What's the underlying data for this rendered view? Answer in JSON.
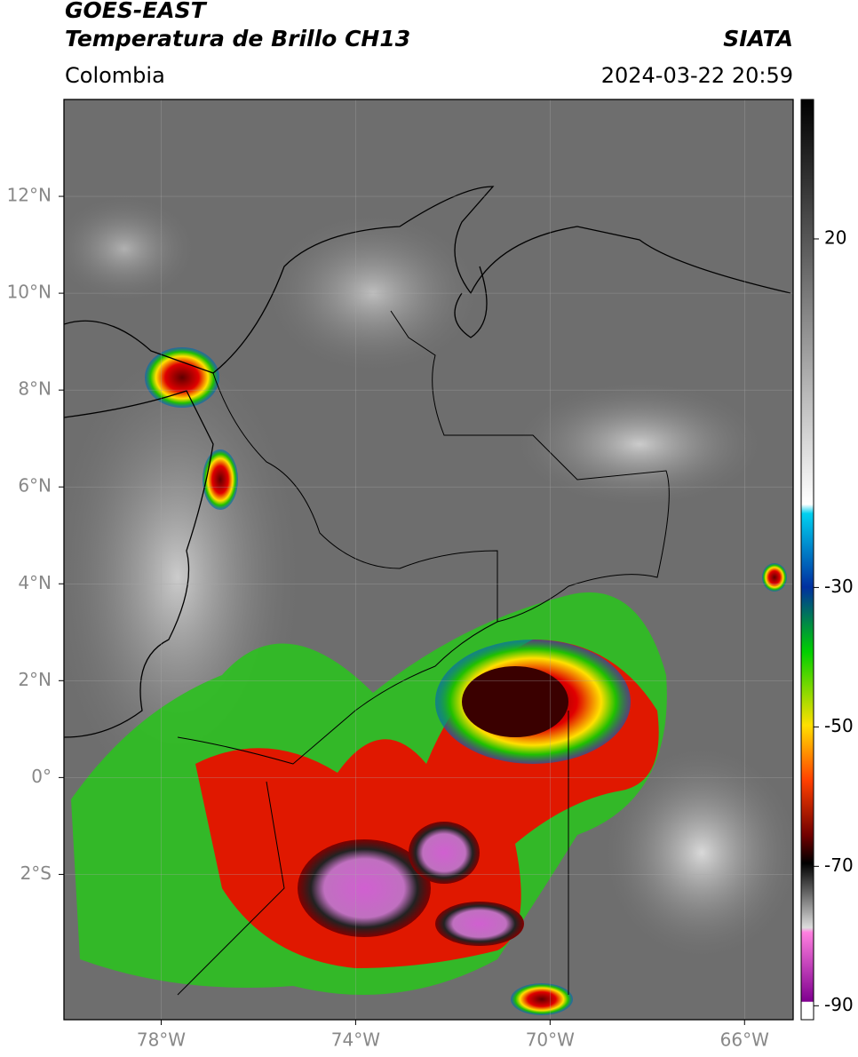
{
  "header": {
    "title": "GOES-EAST",
    "subtitle": "Temperatura de Brillo CH13",
    "source": "SIATA",
    "region": "Colombia",
    "datetime": "2024-03-22 20:59"
  },
  "map": {
    "xlim": [
      -80,
      -65
    ],
    "ylim": [
      -5,
      14
    ],
    "xticks": [
      {
        "value": -78,
        "label": "78°W"
      },
      {
        "value": -74,
        "label": "74°W"
      },
      {
        "value": -70,
        "label": "70°W"
      },
      {
        "value": -66,
        "label": "66°W"
      }
    ],
    "yticks": [
      {
        "value": 12,
        "label": "12°N"
      },
      {
        "value": 10,
        "label": "10°N"
      },
      {
        "value": 8,
        "label": "8°N"
      },
      {
        "value": 6,
        "label": "6°N"
      },
      {
        "value": 4,
        "label": "4°N"
      },
      {
        "value": 2,
        "label": "2°N"
      },
      {
        "value": 0,
        "label": "0°"
      },
      {
        "value": -2,
        "label": "2°S"
      }
    ],
    "grid": true
  },
  "colorbar": {
    "lim": [
      -92,
      40
    ],
    "ticks": [
      20,
      -30,
      -50,
      -70,
      -90
    ]
  }
}
